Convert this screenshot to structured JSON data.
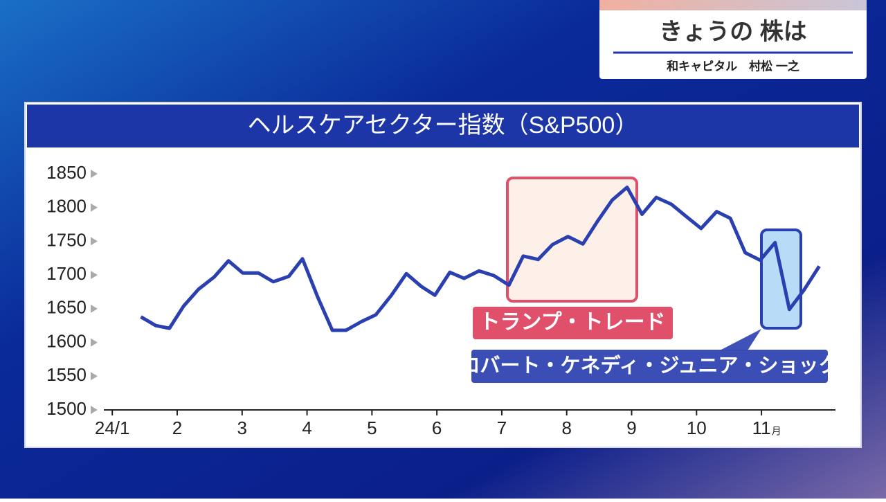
{
  "header": {
    "title": "きょうの 株は",
    "guest": "和キャピタル　村松 一之"
  },
  "chart_data": {
    "type": "line",
    "title": "ヘルスケアセクター指数（S&P500）",
    "x": [
      1.44,
      1.67,
      1.88,
      2.1,
      2.33,
      2.57,
      2.79,
      3.01,
      3.25,
      3.48,
      3.72,
      3.93,
      4.17,
      4.39,
      4.6,
      4.84,
      5.06,
      5.3,
      5.53,
      5.76,
      5.97,
      6.2,
      6.42,
      6.65,
      6.88,
      7.11,
      7.33,
      7.56,
      7.78,
      8.02,
      8.25,
      8.47,
      8.7,
      8.93,
      9.16,
      9.38,
      9.61,
      9.85,
      10.07,
      10.31,
      10.52,
      10.75,
      10.98,
      11.21,
      11.43,
      11.65,
      11.89
    ],
    "series": [
      {
        "name": "ヘルスケアセクター指数",
        "color": "#2a3fb0",
        "values": [
          1638,
          1625,
          1621,
          1654,
          1679,
          1697,
          1721,
          1703,
          1703,
          1690,
          1698,
          1724,
          1666,
          1618,
          1618,
          1631,
          1641,
          1670,
          1702,
          1683,
          1670,
          1704,
          1695,
          1706,
          1699,
          1685,
          1728,
          1723,
          1745,
          1757,
          1746,
          1779,
          1811,
          1830,
          1790,
          1815,
          1805,
          1786,
          1769,
          1794,
          1784,
          1733,
          1722,
          1748,
          1649,
          1677,
          1713
        ]
      }
    ],
    "xlim": [
      0.87,
      12.14
    ],
    "xticks": [
      {
        "value": 1,
        "label": "24/1"
      },
      2,
      3,
      4,
      5,
      6,
      7,
      8,
      9,
      10,
      {
        "value": 11,
        "label": "11"
      }
    ],
    "x_tick_unit": "月",
    "ylim": [
      1500,
      1850
    ],
    "yticks": [
      1500,
      1550,
      1600,
      1650,
      1700,
      1750,
      1800,
      1850
    ],
    "annotations": [
      "トランプ・トレード",
      "ロバート・ケネディ・ジュニア・ショック"
    ]
  }
}
